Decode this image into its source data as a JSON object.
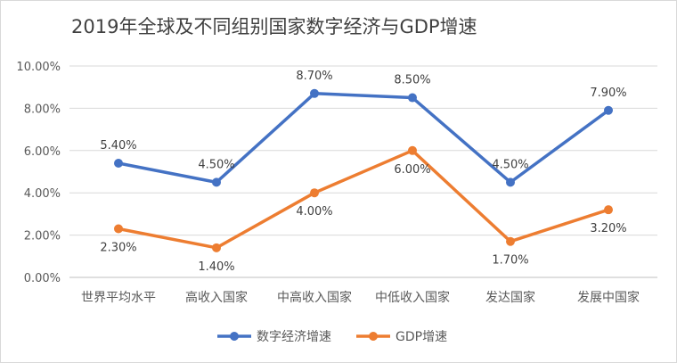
{
  "chart_data": {
    "type": "line",
    "title": "2019年全球及不同组别国家数字经济与GDP增速",
    "categories": [
      "世界平均水平",
      "高收入国家",
      "中高收入国家",
      "中低收入国家",
      "发达国家",
      "发展中国家"
    ],
    "series": [
      {
        "name": "数字经济增速",
        "color": "#4472c4",
        "values": [
          5.4,
          4.5,
          8.7,
          8.5,
          4.5,
          7.9
        ],
        "labels": [
          "5.40%",
          "4.50%",
          "8.70%",
          "8.50%",
          "4.50%",
          "7.90%"
        ]
      },
      {
        "name": "GDP增速",
        "color": "#ed7d31",
        "values": [
          2.3,
          1.4,
          4.0,
          6.0,
          1.7,
          3.2
        ],
        "labels": [
          "2.30%",
          "1.40%",
          "4.00%",
          "6.00%",
          "1.70%",
          "3.20%"
        ]
      }
    ],
    "y_ticks": [
      "0.00%",
      "2.00%",
      "4.00%",
      "6.00%",
      "8.00%",
      "10.00%"
    ],
    "ylim": [
      0,
      10
    ],
    "grid": true,
    "legend_position": "bottom"
  }
}
